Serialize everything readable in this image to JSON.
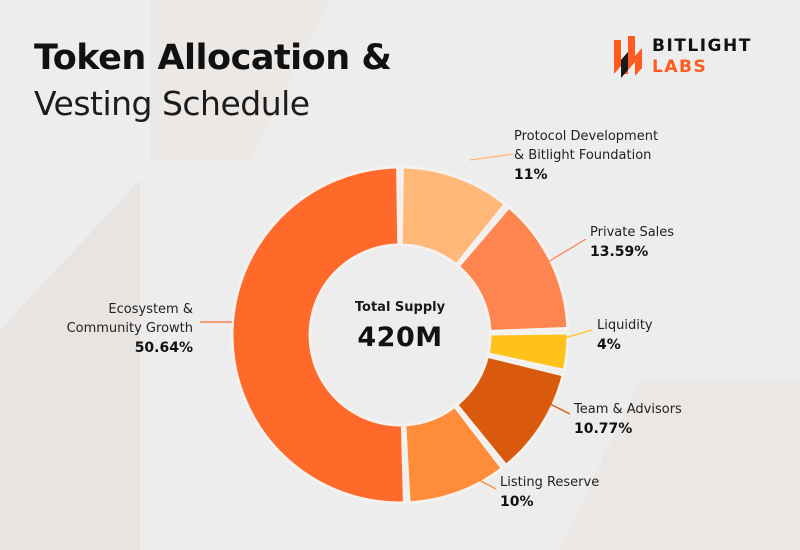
{
  "title_line1": "Token Allocation &",
  "title_line2": "Vesting Schedule",
  "logo": {
    "line1": "BITLIGHT",
    "line2": "LABS",
    "accent": "#ff5a1f"
  },
  "center": {
    "label": "Total Supply",
    "value": "420M"
  },
  "chart_data": {
    "type": "pie",
    "variant": "donut",
    "title": "Token Allocation & Vesting Schedule",
    "total": "420M",
    "slices": [
      {
        "label": "Protocol Development & Bitlight Foundation",
        "label_lines": [
          "Protocol Development",
          "& Bitlight Foundation"
        ],
        "value": 11,
        "display": "11%",
        "color": "#ffb877"
      },
      {
        "label": "Private Sales",
        "label_lines": [
          "Private Sales"
        ],
        "value": 13.59,
        "display": "13.59%",
        "color": "#ff8550"
      },
      {
        "label": "Liquidity",
        "label_lines": [
          "Liquidity"
        ],
        "value": 4,
        "display": "4%",
        "color": "#ffc21a"
      },
      {
        "label": "Team & Advisors",
        "label_lines": [
          "Team & Advisors"
        ],
        "value": 10.77,
        "display": "10.77%",
        "color": "#d95a0c"
      },
      {
        "label": "Listing Reserve",
        "label_lines": [
          "Listing Reserve"
        ],
        "value": 10,
        "display": "10%",
        "color": "#ff8c38"
      },
      {
        "label": "Ecosystem & Community Growth",
        "label_lines": [
          "Ecosystem &",
          "Community Growth"
        ],
        "value": 50.64,
        "display": "50.64%",
        "color": "#ff6a2b"
      }
    ]
  }
}
